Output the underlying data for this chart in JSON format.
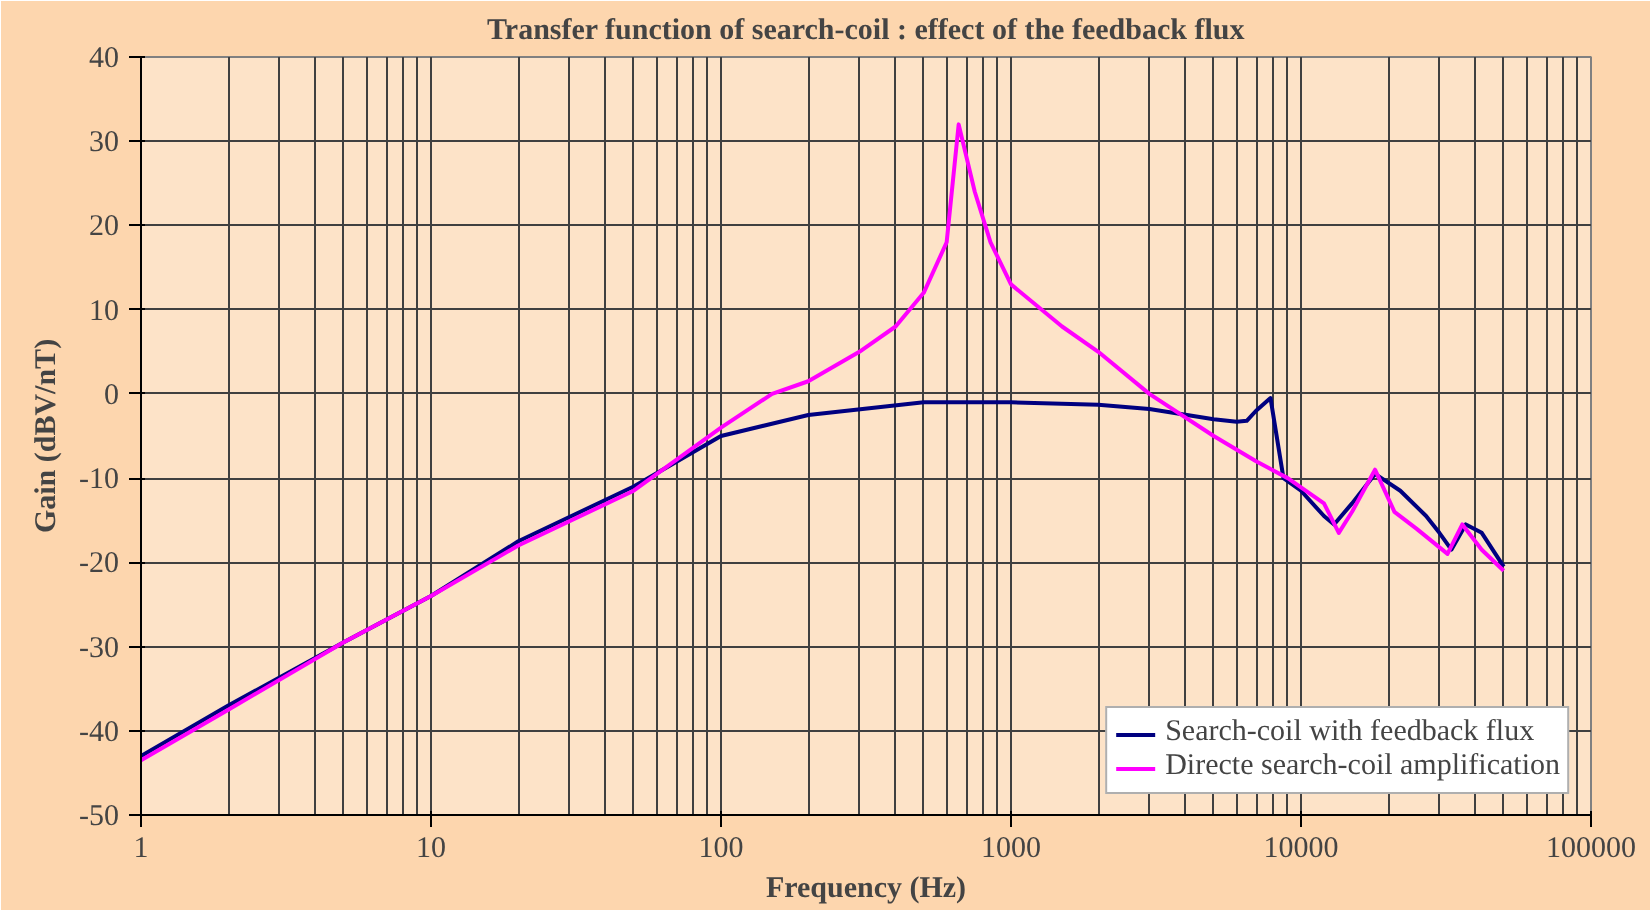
{
  "chart_data": {
    "type": "line",
    "title": "Transfer function of search-coil : effect of the feedback flux",
    "xlabel": "Frequency (Hz)",
    "ylabel": "Gain (dBV/nT)",
    "log": "x",
    "grid": true,
    "legend": "bottom right",
    "marker": "none",
    "line_style": "solid",
    "xlim": [
      1,
      100000
    ],
    "xticks": [
      1,
      10,
      100,
      1000,
      10000,
      100000
    ],
    "ylim": [
      -50,
      40
    ],
    "yticks": [
      -50,
      -40,
      -30,
      -20,
      -10,
      0,
      10,
      20,
      30,
      40
    ],
    "series": [
      {
        "name": "Search-coil with feedback flux",
        "color": "#000080",
        "x": [
          1,
          2,
          5,
          10,
          20,
          50,
          100,
          200,
          500,
          1000,
          2000,
          3000,
          5000,
          6000,
          6500,
          7000,
          7850,
          8700,
          10000,
          12000,
          13000,
          15000,
          18000,
          22000,
          27000,
          30000,
          33000,
          37000,
          42000,
          50000
        ],
        "values": [
          -43,
          -37,
          -29.5,
          -24,
          -17.5,
          -11,
          -5,
          -2.5,
          -1,
          -1,
          -1.3,
          -1.8,
          -3,
          -3.3,
          -3.2,
          -2,
          -0.5,
          -10,
          -11.5,
          -14.5,
          -15.5,
          -13,
          -9.5,
          -11.5,
          -14.5,
          -16.5,
          -18.5,
          -15.5,
          -16.5,
          -20.5
        ]
      },
      {
        "name": "Directe search-coil amplification",
        "color": "#ff00ff",
        "x": [
          1,
          2,
          5,
          10,
          20,
          50,
          100,
          150,
          200,
          300,
          400,
          500,
          600,
          660,
          750,
          850,
          1000,
          1500,
          2000,
          3000,
          5000,
          7000,
          9000,
          12000,
          13500,
          15000,
          18000,
          21000,
          25000,
          32000,
          36000,
          42000,
          50000
        ],
        "values": [
          -43.5,
          -37.5,
          -29.5,
          -24,
          -18,
          -11.5,
          -4,
          0,
          1.5,
          5,
          8,
          12,
          18,
          32,
          24,
          18,
          13,
          8,
          5,
          0,
          -5,
          -8,
          -10,
          -13,
          -16.5,
          -14,
          -9,
          -14,
          -16,
          -19,
          -15.5,
          -18.5,
          -21
        ]
      }
    ]
  }
}
